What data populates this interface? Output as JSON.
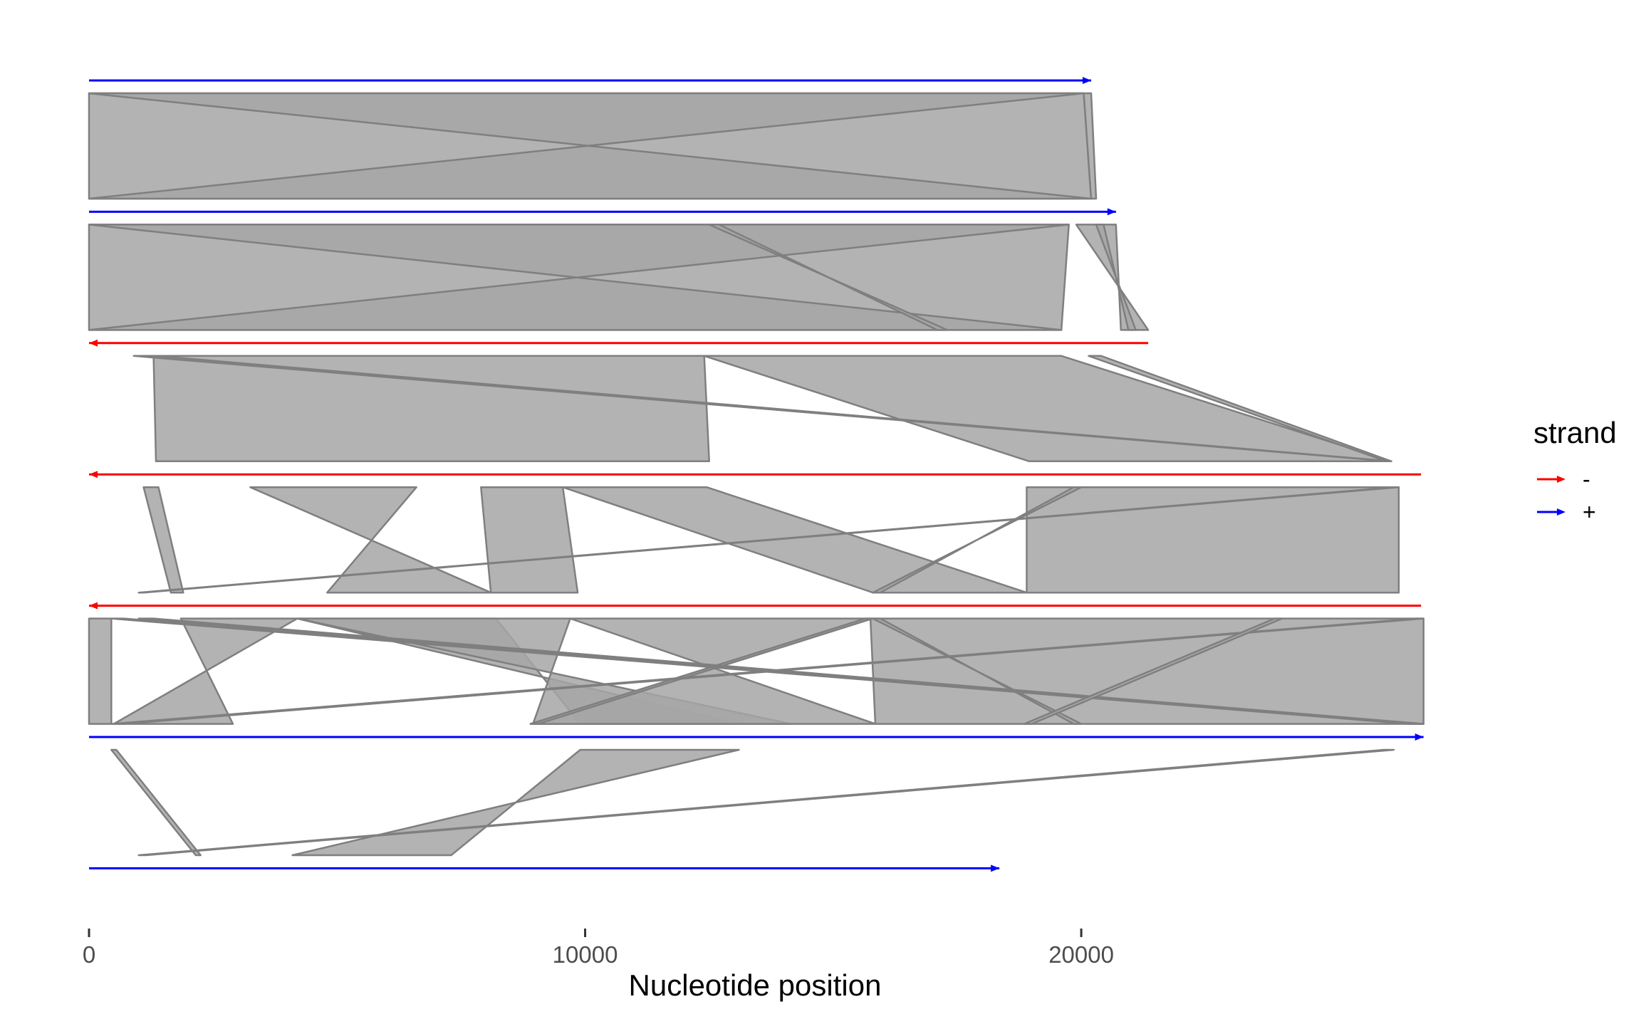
{
  "chart_data": {
    "type": "synteny",
    "xlabel": "Nucleotide position",
    "xlim": [
      0,
      27000
    ],
    "x_ticks": [
      0,
      10000,
      20000
    ],
    "x_tick_labels": [
      "0",
      "10000",
      "20000"
    ],
    "grid": false,
    "legend": {
      "title": "strand",
      "position": "right",
      "entries": [
        {
          "label": "-",
          "color": "#FF0000"
        },
        {
          "label": "+",
          "color": "#0000FF"
        }
      ]
    },
    "link_color": "#A6A6A6",
    "link_stroke": "#7F7F7F",
    "genomes": [
      {
        "start": 0,
        "end": 20200,
        "strand": "+"
      },
      {
        "start": 0,
        "end": 20700,
        "strand": "+"
      },
      {
        "start": 0,
        "end": 21350,
        "strand": "-"
      },
      {
        "start": 0,
        "end": 26850,
        "strand": "-"
      },
      {
        "start": 0,
        "end": 26850,
        "strand": "-"
      },
      {
        "start": 0,
        "end": 26900,
        "strand": "+"
      },
      {
        "start": 0,
        "end": 18350,
        "strand": "+"
      }
    ],
    "links": [
      {
        "pair": 0,
        "top": [
          0,
          20050
        ],
        "bottom": [
          0,
          20200
        ]
      },
      {
        "pair": 0,
        "top": [
          0,
          20050
        ],
        "bottom": [
          20200,
          0
        ]
      },
      {
        "pair": 0,
        "top": [
          20050,
          20200
        ],
        "bottom": [
          20200,
          20300
        ]
      },
      {
        "pair": 1,
        "top": [
          0,
          19750
        ],
        "bottom": [
          0,
          19600
        ]
      },
      {
        "pair": 1,
        "top": [
          0,
          19750
        ],
        "bottom": [
          19600,
          0
        ]
      },
      {
        "pair": 1,
        "top": [
          12500,
          12700
        ],
        "bottom": [
          17300,
          17100
        ]
      },
      {
        "pair": 1,
        "top": [
          19900,
          20700
        ],
        "bottom": [
          21350,
          20800
        ]
      },
      {
        "pair": 1,
        "top": [
          20300,
          20450
        ],
        "bottom": [
          21100,
          20950
        ]
      },
      {
        "pair": 2,
        "top": [
          1300,
          12400
        ],
        "bottom": [
          1350,
          12500
        ]
      },
      {
        "pair": 2,
        "top": [
          12400,
          19600
        ],
        "bottom": [
          18950,
          26250
        ]
      },
      {
        "pair": 2,
        "top": [
          900,
          1350
        ],
        "bottom": [
          26200,
          26250
        ]
      },
      {
        "pair": 2,
        "top": [
          20150,
          20400
        ],
        "bottom": [
          26150,
          26250
        ]
      },
      {
        "pair": 3,
        "top": [
          1100,
          1400
        ],
        "bottom": [
          1650,
          1900
        ]
      },
      {
        "pair": 3,
        "top": [
          3250,
          6600
        ],
        "bottom": [
          8100,
          4800
        ]
      },
      {
        "pair": 3,
        "top": [
          7900,
          9550
        ],
        "bottom": [
          8100,
          9850
        ]
      },
      {
        "pair": 3,
        "top": [
          9550,
          12450
        ],
        "bottom": [
          15800,
          18900
        ]
      },
      {
        "pair": 3,
        "top": [
          18900,
          26400
        ],
        "bottom": [
          18900,
          26400
        ]
      },
      {
        "pair": 3,
        "top": [
          26300,
          26400
        ],
        "bottom": [
          1000,
          1100
        ]
      },
      {
        "pair": 3,
        "top": [
          20000,
          19850
        ],
        "bottom": [
          15800,
          15950
        ]
      },
      {
        "pair": 4,
        "top": [
          0,
          450
        ],
        "bottom": [
          0,
          450
        ]
      },
      {
        "pair": 4,
        "top": [
          1850,
          4200
        ],
        "bottom": [
          2900,
          500
        ]
      },
      {
        "pair": 4,
        "top": [
          4200,
          8200
        ],
        "bottom": [
          13100,
          9900
        ]
      },
      {
        "pair": 4,
        "top": [
          4200,
          9700
        ],
        "bottom": [
          14150,
          8950
        ]
      },
      {
        "pair": 4,
        "top": [
          9700,
          15750
        ],
        "bottom": [
          15850,
          8900
        ]
      },
      {
        "pair": 4,
        "top": [
          15750,
          26900
        ],
        "bottom": [
          15850,
          26900
        ]
      },
      {
        "pair": 4,
        "top": [
          15650,
          15800
        ],
        "bottom": [
          8900,
          9050
        ]
      },
      {
        "pair": 4,
        "top": [
          1000,
          1300
        ],
        "bottom": [
          26700,
          26900
        ]
      },
      {
        "pair": 4,
        "top": [
          450,
          700
        ],
        "bottom": [
          26600,
          26900
        ]
      },
      {
        "pair": 4,
        "top": [
          26750,
          26900
        ],
        "bottom": [
          450,
          700
        ]
      },
      {
        "pair": 4,
        "top": [
          15800,
          15950
        ],
        "bottom": [
          20000,
          19850
        ]
      },
      {
        "pair": 4,
        "top": [
          23900,
          24050
        ],
        "bottom": [
          18850,
          19000
        ]
      },
      {
        "pair": 5,
        "top": [
          450,
          550
        ],
        "bottom": [
          2150,
          2250
        ]
      },
      {
        "pair": 5,
        "top": [
          9900,
          13100
        ],
        "bottom": [
          7300,
          4100
        ]
      },
      {
        "pair": 5,
        "top": [
          26100,
          26300
        ],
        "bottom": [
          1000,
          1150
        ]
      }
    ]
  }
}
